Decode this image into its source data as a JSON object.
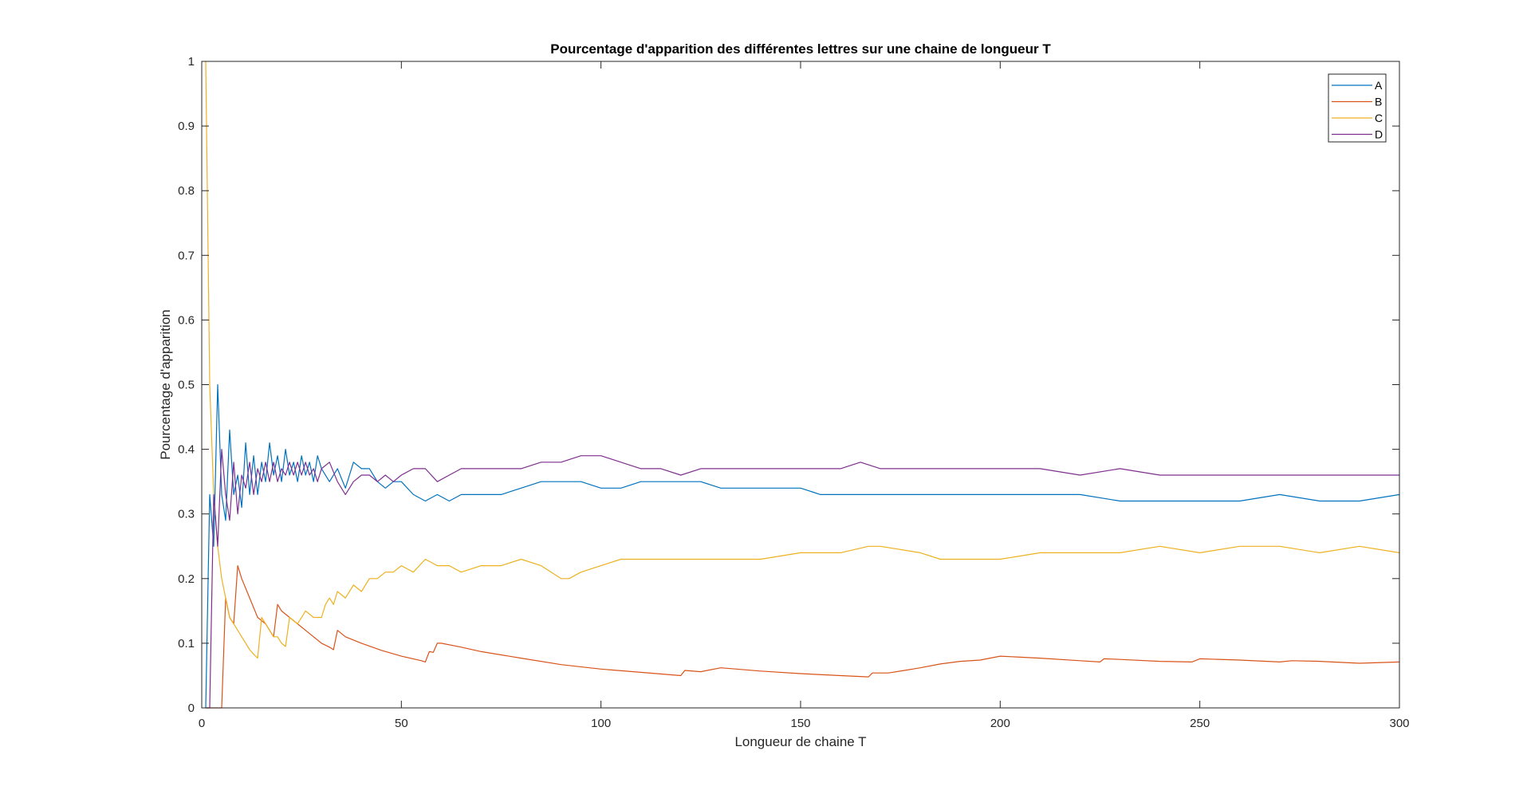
{
  "chart_data": {
    "type": "line",
    "title": "Pourcentage d'apparition des différentes lettres sur une chaine de longueur T",
    "xlabel": "Longueur de chaine T",
    "ylabel": "Pourcentage d'apparition",
    "xlim": [
      0,
      300
    ],
    "ylim": [
      0,
      1
    ],
    "xticks": [
      0,
      50,
      100,
      150,
      200,
      250,
      300
    ],
    "yticks": [
      0,
      0.1,
      0.2,
      0.3,
      0.4,
      0.5,
      0.6,
      0.7,
      0.8,
      0.9,
      1
    ],
    "xtick_labels": [
      "0",
      "50",
      "100",
      "150",
      "200",
      "250",
      "300"
    ],
    "ytick_labels": [
      "0",
      "0.1",
      "0.2",
      "0.3",
      "0.4",
      "0.5",
      "0.6",
      "0.7",
      "0.8",
      "0.9",
      "1"
    ],
    "grid": false,
    "legend_position": "top-right",
    "series": [
      {
        "name": "A",
        "color": "#0072BD",
        "x": [
          1,
          2,
          3,
          4,
          5,
          6,
          7,
          8,
          9,
          10,
          11,
          12,
          13,
          14,
          15,
          16,
          17,
          18,
          19,
          20,
          21,
          22,
          23,
          24,
          25,
          26,
          27,
          28,
          29,
          30,
          32,
          34,
          36,
          38,
          40,
          42,
          44,
          46,
          48,
          50,
          53,
          56,
          59,
          62,
          65,
          70,
          75,
          80,
          85,
          90,
          95,
          100,
          105,
          110,
          115,
          120,
          125,
          130,
          135,
          140,
          145,
          150,
          155,
          160,
          165,
          170,
          175,
          180,
          185,
          190,
          195,
          200,
          210,
          220,
          230,
          240,
          250,
          260,
          270,
          280,
          290,
          300
        ],
        "values": [
          0,
          0.33,
          0.25,
          0.5,
          0.33,
          0.29,
          0.43,
          0.33,
          0.36,
          0.31,
          0.41,
          0.33,
          0.39,
          0.33,
          0.38,
          0.35,
          0.41,
          0.36,
          0.39,
          0.35,
          0.4,
          0.36,
          0.38,
          0.35,
          0.39,
          0.36,
          0.38,
          0.35,
          0.39,
          0.37,
          0.35,
          0.37,
          0.34,
          0.38,
          0.37,
          0.37,
          0.35,
          0.34,
          0.35,
          0.35,
          0.33,
          0.32,
          0.33,
          0.32,
          0.33,
          0.33,
          0.33,
          0.34,
          0.35,
          0.35,
          0.35,
          0.34,
          0.34,
          0.35,
          0.35,
          0.35,
          0.35,
          0.34,
          0.34,
          0.34,
          0.34,
          0.34,
          0.33,
          0.33,
          0.33,
          0.33,
          0.33,
          0.33,
          0.33,
          0.33,
          0.33,
          0.33,
          0.33,
          0.33,
          0.32,
          0.32,
          0.32,
          0.32,
          0.33,
          0.32,
          0.32,
          0.33
        ]
      },
      {
        "name": "B",
        "color": "#D95319",
        "x": [
          1,
          2,
          3,
          4,
          5,
          6,
          7,
          8,
          9,
          10,
          12,
          14,
          16,
          18,
          19,
          20,
          22,
          24,
          26,
          28,
          30,
          32,
          33,
          34,
          36,
          40,
          45,
          50,
          55,
          56,
          57,
          58,
          59,
          60,
          65,
          70,
          80,
          90,
          100,
          110,
          120,
          121,
          125,
          130,
          140,
          150,
          160,
          167,
          168,
          172,
          176,
          180,
          185,
          190,
          195,
          200,
          210,
          220,
          225,
          226,
          230,
          240,
          248,
          250,
          260,
          270,
          273,
          280,
          290,
          300
        ],
        "values": [
          0,
          0,
          0,
          0,
          0,
          0.17,
          0.14,
          0.13,
          0.22,
          0.2,
          0.17,
          0.14,
          0.13,
          0.11,
          0.16,
          0.15,
          0.14,
          0.13,
          0.12,
          0.11,
          0.1,
          0.094,
          0.09,
          0.12,
          0.11,
          0.1,
          0.089,
          0.08,
          0.073,
          0.071,
          0.087,
          0.086,
          0.1,
          0.1,
          0.094,
          0.087,
          0.077,
          0.067,
          0.06,
          0.055,
          0.05,
          0.058,
          0.056,
          0.062,
          0.057,
          0.053,
          0.05,
          0.048,
          0.054,
          0.054,
          0.058,
          0.062,
          0.068,
          0.072,
          0.074,
          0.08,
          0.077,
          0.073,
          0.071,
          0.076,
          0.075,
          0.072,
          0.071,
          0.076,
          0.074,
          0.071,
          0.073,
          0.072,
          0.069,
          0.071
        ]
      },
      {
        "name": "C",
        "color": "#EDB120",
        "x": [
          1,
          2,
          3,
          4,
          5,
          6,
          7,
          8,
          9,
          10,
          12,
          13,
          14,
          15,
          16,
          17,
          18,
          19,
          20,
          21,
          22,
          24,
          26,
          28,
          30,
          31,
          32,
          33,
          34,
          36,
          38,
          40,
          42,
          44,
          46,
          48,
          50,
          53,
          56,
          59,
          62,
          65,
          70,
          75,
          80,
          85,
          90,
          92,
          95,
          100,
          105,
          110,
          115,
          120,
          125,
          130,
          140,
          150,
          160,
          167,
          170,
          180,
          185,
          190,
          195,
          200,
          210,
          220,
          230,
          240,
          250,
          260,
          270,
          280,
          290,
          300
        ],
        "values": [
          1,
          0.5,
          0.33,
          0.25,
          0.2,
          0.17,
          0.14,
          0.13,
          0.12,
          0.11,
          0.09,
          0.083,
          0.077,
          0.14,
          0.13,
          0.12,
          0.11,
          0.11,
          0.1,
          0.095,
          0.14,
          0.13,
          0.15,
          0.14,
          0.14,
          0.16,
          0.17,
          0.16,
          0.18,
          0.17,
          0.19,
          0.18,
          0.2,
          0.2,
          0.21,
          0.21,
          0.22,
          0.21,
          0.23,
          0.22,
          0.22,
          0.21,
          0.22,
          0.22,
          0.23,
          0.22,
          0.2,
          0.2,
          0.21,
          0.22,
          0.23,
          0.23,
          0.23,
          0.23,
          0.23,
          0.23,
          0.23,
          0.24,
          0.24,
          0.25,
          0.25,
          0.24,
          0.23,
          0.23,
          0.23,
          0.23,
          0.24,
          0.24,
          0.24,
          0.25,
          0.24,
          0.25,
          0.25,
          0.24,
          0.25,
          0.24
        ]
      },
      {
        "name": "D",
        "color": "#7E2F8E",
        "x": [
          1,
          2,
          3,
          4,
          5,
          6,
          7,
          8,
          9,
          10,
          11,
          12,
          13,
          14,
          15,
          16,
          17,
          18,
          19,
          20,
          21,
          22,
          23,
          24,
          25,
          26,
          27,
          28,
          29,
          30,
          32,
          34,
          36,
          38,
          40,
          42,
          44,
          46,
          48,
          50,
          53,
          56,
          59,
          62,
          65,
          70,
          75,
          80,
          85,
          90,
          95,
          100,
          105,
          110,
          115,
          120,
          125,
          130,
          135,
          140,
          145,
          150,
          155,
          160,
          165,
          170,
          175,
          180,
          185,
          190,
          195,
          200,
          210,
          220,
          230,
          240,
          250,
          260,
          270,
          280,
          290,
          300
        ],
        "values": [
          0,
          0,
          0.33,
          0.25,
          0.4,
          0.33,
          0.29,
          0.38,
          0.3,
          0.36,
          0.34,
          0.38,
          0.33,
          0.37,
          0.35,
          0.38,
          0.35,
          0.38,
          0.35,
          0.37,
          0.36,
          0.38,
          0.36,
          0.38,
          0.36,
          0.38,
          0.36,
          0.37,
          0.35,
          0.37,
          0.38,
          0.35,
          0.33,
          0.35,
          0.36,
          0.36,
          0.35,
          0.36,
          0.35,
          0.36,
          0.37,
          0.37,
          0.35,
          0.36,
          0.37,
          0.37,
          0.37,
          0.37,
          0.38,
          0.38,
          0.39,
          0.39,
          0.38,
          0.37,
          0.37,
          0.36,
          0.37,
          0.37,
          0.37,
          0.37,
          0.37,
          0.37,
          0.37,
          0.37,
          0.38,
          0.37,
          0.37,
          0.37,
          0.37,
          0.37,
          0.37,
          0.37,
          0.37,
          0.36,
          0.37,
          0.36,
          0.36,
          0.36,
          0.36,
          0.36,
          0.36,
          0.36
        ]
      }
    ]
  }
}
